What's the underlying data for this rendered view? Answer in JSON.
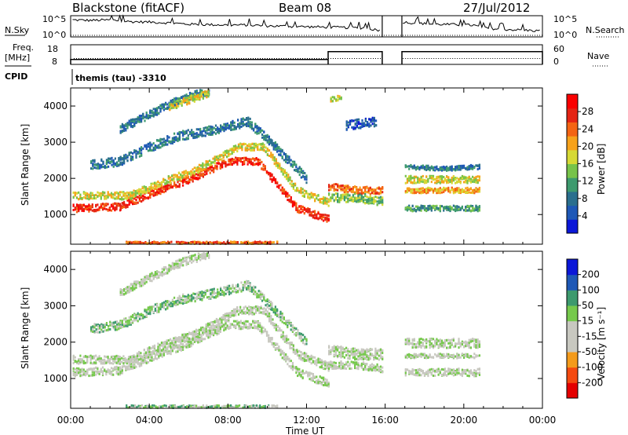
{
  "header": {
    "station": "Blackstone (fitACF)",
    "beam": "Beam 08",
    "date": "27/Jul/2012",
    "cpid_label": "CPID",
    "cpid_value": "themis (tau) -3310"
  },
  "top_panels": [
    {
      "type": "line",
      "left_label": "N.Sky",
      "right_label": "N.Search",
      "left_ticks": [
        "10^5",
        "10^0"
      ],
      "right_ticks": [
        "10^5",
        "10^0"
      ],
      "gap_hours": [
        15.85,
        16.85
      ],
      "series": [
        {
          "x": [
            0.1,
            1,
            2,
            3,
            4,
            5,
            6,
            7,
            8,
            9,
            10,
            11,
            12,
            13,
            14,
            15,
            15.8
          ],
          "y": [
            0.8,
            0.78,
            0.8,
            0.72,
            0.7,
            0.66,
            0.6,
            0.58,
            0.56,
            0.56,
            0.52,
            0.5,
            0.48,
            0.46,
            0.44,
            0.42,
            0.3
          ]
        },
        {
          "x": [
            16.9,
            17.5,
            18.5,
            19.5,
            20.5,
            21,
            22,
            23,
            23.95
          ],
          "y": [
            0.7,
            0.65,
            0.6,
            0.58,
            0.55,
            0.42,
            0.36,
            0.32,
            0.28
          ]
        }
      ]
    },
    {
      "type": "step",
      "left_label_top": "Freq.",
      "left_label_bottom": "[MHz]",
      "right_label": "Nave",
      "left_ticks": [
        "18",
        "8"
      ],
      "right_ticks": [
        "60",
        "0"
      ],
      "freq_steps": [
        {
          "x0": 0,
          "x1": 13.1,
          "v": 10.5
        },
        {
          "x0": 13.1,
          "x1": 15.85,
          "v": 14.5
        },
        {
          "x0": 16.85,
          "x1": 24,
          "v": 14.5
        }
      ],
      "nave_level": 0.3
    }
  ],
  "chart_data": [
    {
      "type": "heatmap",
      "ylabel": "Slant Range [km]",
      "ylim": [
        180,
        4500
      ],
      "yticks": [
        "1000",
        "2000",
        "3000",
        "4000"
      ],
      "xlim": [
        0,
        24
      ],
      "colorbar_label": "Power [dB]",
      "colorbar_ticks": [
        "28",
        "24",
        "20",
        "16",
        "12",
        "8",
        "4"
      ],
      "colors": [
        "#0b17d8",
        "#1e58b6",
        "#2a6f8e",
        "#3d9a6e",
        "#77c34a",
        "#d6d935",
        "#f7a21b",
        "#f46413",
        "#e42414",
        "#fa0000"
      ],
      "bands": [
        {
          "x": [
            0.1,
            2.5,
            4,
            6,
            8,
            9.5,
            11.5,
            13.1
          ],
          "y": [
            1200,
            1250,
            1600,
            2000,
            2500,
            2500,
            1200,
            900
          ],
          "w": 200,
          "lvl": 8
        },
        {
          "x": [
            0.1,
            3,
            4.5,
            6.5,
            8.5,
            9.8,
            11.5,
            13.1
          ],
          "y": [
            1550,
            1550,
            1900,
            2300,
            2900,
            2900,
            1700,
            1350
          ],
          "w": 200,
          "lvl": 5
        },
        {
          "x": [
            1,
            2.5,
            4,
            5.5,
            7.5,
            9,
            10.2,
            12
          ],
          "y": [
            2400,
            2500,
            2900,
            3200,
            3400,
            3600,
            3000,
            2000
          ],
          "w": 250,
          "lvl": 2
        },
        {
          "x": [
            2.5,
            4,
            5.5,
            7
          ],
          "y": [
            3400,
            3800,
            4200,
            4450
          ],
          "w": 220,
          "lvl": 2
        },
        {
          "x": [
            5,
            6,
            7
          ],
          "y": [
            4000,
            4200,
            4400
          ],
          "w": 200,
          "lvl": 5
        },
        {
          "x": [
            13.1,
            14.5,
            15.85
          ],
          "y": [
            1800,
            1700,
            1700
          ],
          "w": 200,
          "lvl": 7
        },
        {
          "x": [
            13.1,
            14.5,
            15.85
          ],
          "y": [
            1500,
            1500,
            1400
          ],
          "w": 250,
          "lvl": 4
        },
        {
          "x": [
            14,
            15.5
          ],
          "y": [
            3500,
            3600
          ],
          "w": 250,
          "lvl": 1
        },
        {
          "x": [
            13.2,
            13.8
          ],
          "y": [
            4200,
            4300
          ],
          "w": 150,
          "lvl": 5
        },
        {
          "x": [
            17,
            19,
            20.8
          ],
          "y": [
            2000,
            2000,
            2000
          ],
          "w": 200,
          "lvl": 5
        },
        {
          "x": [
            17,
            19,
            20.8
          ],
          "y": [
            1700,
            1700,
            1700
          ],
          "w": 150,
          "lvl": 6
        },
        {
          "x": [
            17,
            19,
            20.8
          ],
          "y": [
            1200,
            1200,
            1200
          ],
          "w": 150,
          "lvl": 3
        },
        {
          "x": [
            17,
            19,
            20.8
          ],
          "y": [
            2350,
            2300,
            2350
          ],
          "w": 120,
          "lvl": 2
        },
        {
          "x": [
            2.8,
            6,
            9.5,
            10.5
          ],
          "y": [
            250,
            250,
            250,
            250
          ],
          "w": 60,
          "lvl": 7
        }
      ]
    },
    {
      "type": "heatmap",
      "ylabel": "Slant Range [km]",
      "ylim": [
        180,
        4500
      ],
      "yticks": [
        "1000",
        "2000",
        "3000",
        "4000"
      ],
      "xlim": [
        0,
        24
      ],
      "xticks": [
        "00:00",
        "04:00",
        "08:00",
        "12:00",
        "16:00",
        "20:00",
        "00:00"
      ],
      "xlabel": "Time UT",
      "colorbar_label": "Velocity [m s⁻¹]",
      "colorbar_ticks": [
        "200",
        "100",
        "50",
        "15",
        "-15",
        "-50",
        "-100",
        "-200"
      ],
      "colors": [
        "#e40000",
        "#f44a10",
        "#f49b1b",
        "#c8c8c0",
        "#c8c8c0",
        "#76c94c",
        "#3d9a6e",
        "#1e58b6",
        "#0b17d8"
      ],
      "bands": [
        {
          "x": [
            0.1,
            2.5,
            4,
            6,
            8,
            9.5,
            11.5,
            13.1
          ],
          "y": [
            1200,
            1250,
            1600,
            2000,
            2500,
            2500,
            1200,
            900
          ],
          "w": 220,
          "lvl": 4
        },
        {
          "x": [
            0.1,
            3,
            4.5,
            6.5,
            8.5,
            9.8,
            11.5,
            13.1
          ],
          "y": [
            1550,
            1550,
            1900,
            2300,
            2900,
            2900,
            1700,
            1350
          ],
          "w": 220,
          "lvl": 4
        },
        {
          "x": [
            1,
            2.5,
            4,
            5.5,
            7.5,
            9,
            10.2,
            12
          ],
          "y": [
            2400,
            2500,
            2900,
            3200,
            3400,
            3600,
            3000,
            2000
          ],
          "w": 250,
          "lvl": 5
        },
        {
          "x": [
            2.5,
            4,
            5.5,
            7
          ],
          "y": [
            3400,
            3800,
            4200,
            4450
          ],
          "w": 220,
          "lvl": 4
        },
        {
          "x": [
            13.1,
            14.5,
            15.85
          ],
          "y": [
            1800,
            1700,
            1700
          ],
          "w": 300,
          "lvl": 4
        },
        {
          "x": [
            13.1,
            14.5,
            15.85
          ],
          "y": [
            1400,
            1400,
            1300
          ],
          "w": 200,
          "lvl": 4
        },
        {
          "x": [
            17,
            19,
            20.8
          ],
          "y": [
            2000,
            2000,
            2000
          ],
          "w": 250,
          "lvl": 4
        },
        {
          "x": [
            17,
            19,
            20.8
          ],
          "y": [
            1200,
            1200,
            1200
          ],
          "w": 200,
          "lvl": 4
        },
        {
          "x": [
            17,
            19,
            20.8
          ],
          "y": [
            1650,
            1650,
            1650
          ],
          "w": 120,
          "lvl": 4
        },
        {
          "x": [
            2.8,
            6,
            9.5,
            10.5
          ],
          "y": [
            250,
            250,
            250,
            250
          ],
          "w": 80,
          "lvl": 5
        }
      ]
    }
  ]
}
